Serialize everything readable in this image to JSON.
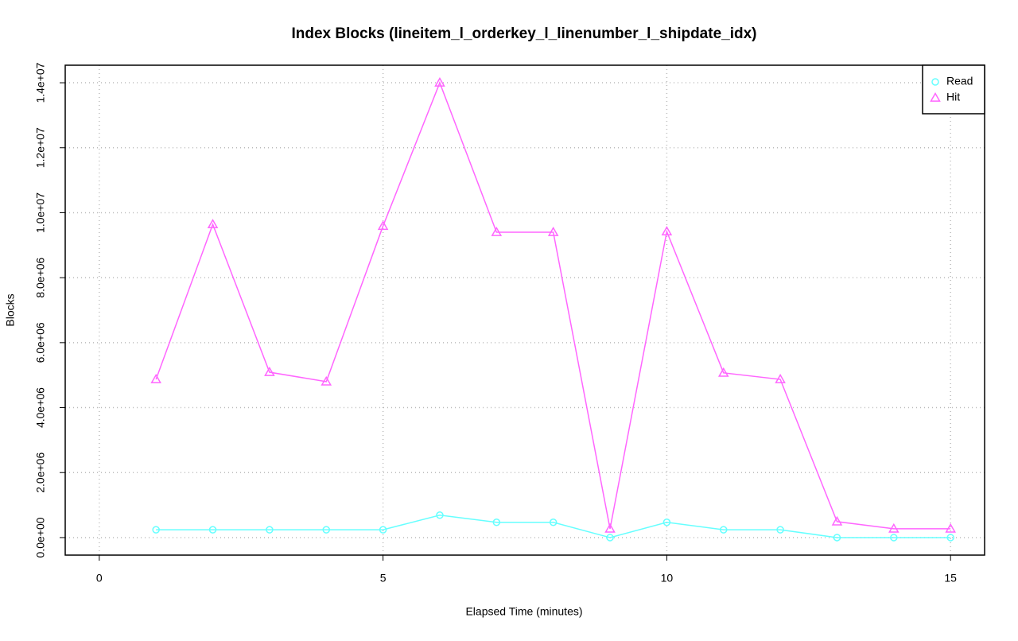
{
  "chart_data": {
    "type": "line",
    "title": "Index Blocks (lineitem_l_orderkey_l_linenumber_l_shipdate_idx)",
    "x_label": "Elapsed Time (minutes)",
    "y_label": "Blocks",
    "x": [
      1,
      2,
      3,
      4,
      5,
      6,
      7,
      8,
      9,
      10,
      11,
      12,
      13,
      14,
      15
    ],
    "series": [
      {
        "name": "Read",
        "color": "#66ffff",
        "marker": "circle",
        "values": [
          240000,
          240000,
          240000,
          240000,
          240000,
          690000,
          470000,
          470000,
          0,
          470000,
          240000,
          240000,
          0,
          0,
          0
        ]
      },
      {
        "name": "Hit",
        "color": "#ff66ff",
        "marker": "triangle",
        "values": [
          4870000,
          9640000,
          5090000,
          4800000,
          9590000,
          14000000,
          9400000,
          9400000,
          270000,
          9420000,
          5070000,
          4870000,
          490000,
          270000,
          270000
        ]
      }
    ],
    "xlim": [
      -0.6,
      15.6
    ],
    "ylim": [
      -540000,
      14540000
    ],
    "xticks": [
      0,
      5,
      10,
      15
    ],
    "yticks": [
      {
        "value": 0,
        "label": "0.0e+00"
      },
      {
        "value": 2000000,
        "label": "2.0e+06"
      },
      {
        "value": 4000000,
        "label": "4.0e+06"
      },
      {
        "value": 6000000,
        "label": "6.0e+06"
      },
      {
        "value": 8000000,
        "label": "8.0e+06"
      },
      {
        "value": 10000000,
        "label": "1.0e+07"
      },
      {
        "value": 12000000,
        "label": "1.2e+07"
      },
      {
        "value": 14000000,
        "label": "1.4e+07"
      }
    ],
    "grid": true,
    "legend_position": "topright"
  }
}
